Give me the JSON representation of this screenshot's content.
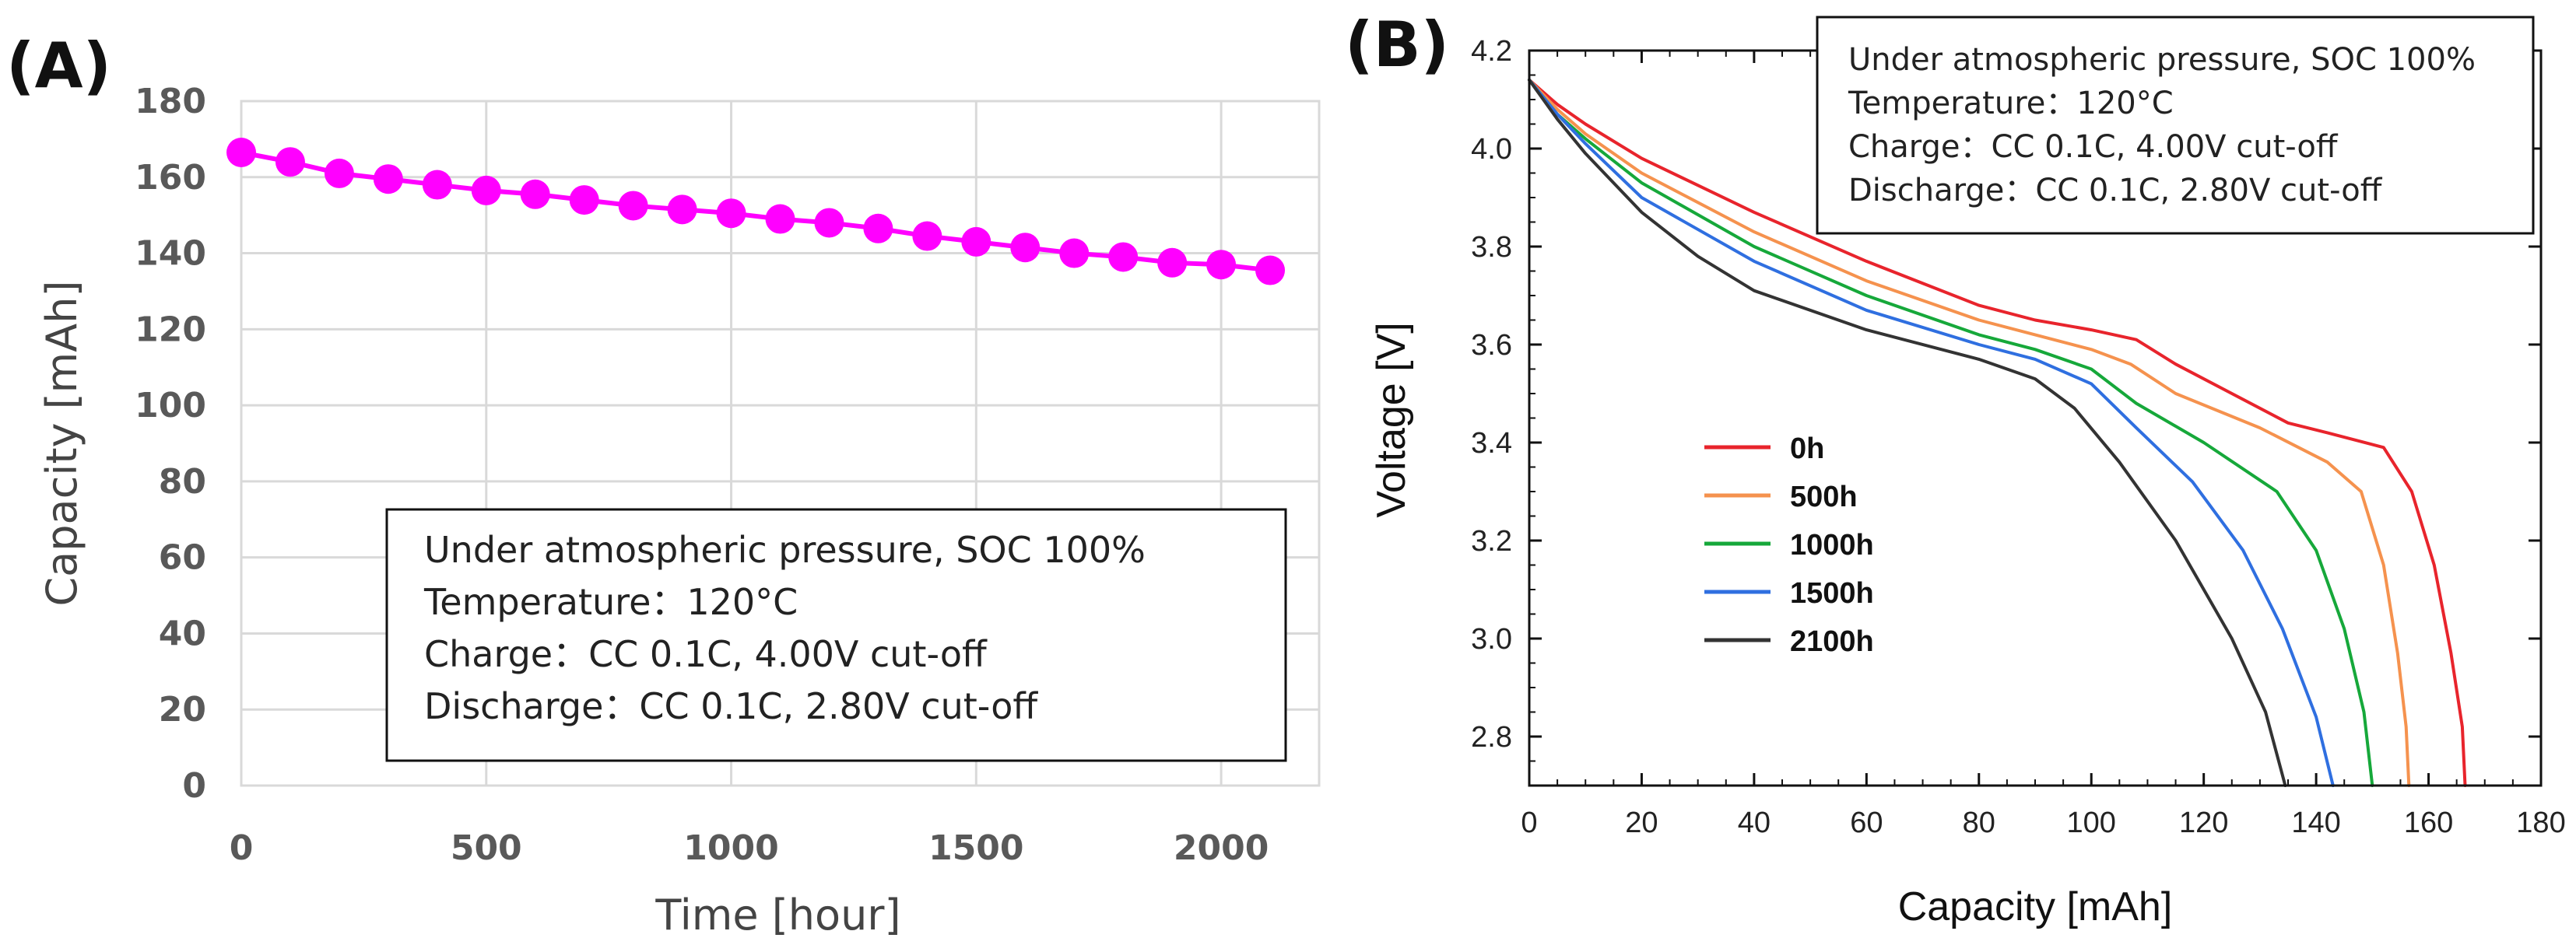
{
  "chart_data": [
    {
      "panel_label": "(A)",
      "type": "scatter",
      "title": "",
      "xlabel": "Time [hour]",
      "ylabel": "Capacity [mAh]",
      "xlim": [
        0,
        2200
      ],
      "ylim": [
        0,
        180
      ],
      "x_ticks": [
        0,
        500,
        1000,
        1500,
        2000
      ],
      "y_ticks": [
        0,
        20,
        40,
        60,
        80,
        100,
        120,
        140,
        160,
        180
      ],
      "grid": true,
      "marker_color": "#FF00FF",
      "series": [
        {
          "name": "Capacity",
          "x": [
            0,
            100,
            200,
            300,
            400,
            500,
            600,
            700,
            800,
            900,
            1000,
            1100,
            1200,
            1300,
            1400,
            1500,
            1600,
            1700,
            1800,
            1900,
            2000,
            2100
          ],
          "y": [
            166.5,
            164,
            161,
            159.5,
            158,
            156.5,
            155.5,
            154,
            152.5,
            151.5,
            150.5,
            149,
            148,
            146.5,
            144.5,
            143,
            141.5,
            140,
            139,
            137.5,
            137,
            135.5
          ]
        }
      ],
      "annotation": [
        "Under atmospheric pressure, SOC 100%",
        "Temperature：120°C",
        "Charge：CC 0.1C, 4.00V cut-off",
        "Discharge：CC 0.1C, 2.80V cut-off"
      ]
    },
    {
      "panel_label": "(B)",
      "type": "line",
      "title": "",
      "xlabel": "Capacity [mAh]",
      "ylabel": "Voltage [V]",
      "xlim": [
        0,
        180
      ],
      "ylim": [
        2.7,
        4.2
      ],
      "x_ticks": [
        0,
        20,
        40,
        60,
        80,
        100,
        120,
        140,
        160,
        180
      ],
      "y_ticks": [
        2.8,
        3.0,
        3.2,
        3.4,
        3.6,
        3.8,
        4.0,
        4.2
      ],
      "grid": false,
      "legend_position": "center-left",
      "series": [
        {
          "name": "0h",
          "color": "#E8242C",
          "points": [
            [
              0,
              4.14
            ],
            [
              5,
              4.09
            ],
            [
              10,
              4.05
            ],
            [
              20,
              3.98
            ],
            [
              40,
              3.87
            ],
            [
              60,
              3.77
            ],
            [
              80,
              3.68
            ],
            [
              90,
              3.65
            ],
            [
              100,
              3.63
            ],
            [
              108,
              3.61
            ],
            [
              115,
              3.56
            ],
            [
              125,
              3.5
            ],
            [
              135,
              3.44
            ],
            [
              142,
              3.42
            ],
            [
              152,
              3.39
            ],
            [
              157,
              3.3
            ],
            [
              161,
              3.15
            ],
            [
              164,
              2.97
            ],
            [
              166,
              2.82
            ],
            [
              166.5,
              2.7
            ]
          ]
        },
        {
          "name": "500h",
          "color": "#F5924E",
          "points": [
            [
              0,
              4.14
            ],
            [
              5,
              4.08
            ],
            [
              10,
              4.03
            ],
            [
              20,
              3.95
            ],
            [
              40,
              3.83
            ],
            [
              60,
              3.73
            ],
            [
              80,
              3.65
            ],
            [
              90,
              3.62
            ],
            [
              100,
              3.59
            ],
            [
              107,
              3.56
            ],
            [
              115,
              3.5
            ],
            [
              130,
              3.43
            ],
            [
              142,
              3.36
            ],
            [
              148,
              3.3
            ],
            [
              152,
              3.15
            ],
            [
              154.5,
              2.97
            ],
            [
              156,
              2.82
            ],
            [
              156.5,
              2.7
            ]
          ]
        },
        {
          "name": "1000h",
          "color": "#16A83A",
          "points": [
            [
              0,
              4.14
            ],
            [
              5,
              4.07
            ],
            [
              10,
              4.02
            ],
            [
              20,
              3.93
            ],
            [
              40,
              3.8
            ],
            [
              60,
              3.7
            ],
            [
              80,
              3.62
            ],
            [
              90,
              3.59
            ],
            [
              100,
              3.55
            ],
            [
              108,
              3.48
            ],
            [
              120,
              3.4
            ],
            [
              133,
              3.3
            ],
            [
              140,
              3.18
            ],
            [
              145,
              3.02
            ],
            [
              148.5,
              2.85
            ],
            [
              150,
              2.7
            ]
          ]
        },
        {
          "name": "1500h",
          "color": "#2F6FE0",
          "points": [
            [
              0,
              4.14
            ],
            [
              5,
              4.07
            ],
            [
              10,
              4.01
            ],
            [
              20,
              3.9
            ],
            [
              40,
              3.77
            ],
            [
              60,
              3.67
            ],
            [
              80,
              3.6
            ],
            [
              90,
              3.57
            ],
            [
              100,
              3.52
            ],
            [
              108,
              3.43
            ],
            [
              118,
              3.32
            ],
            [
              127,
              3.18
            ],
            [
              134,
              3.02
            ],
            [
              140,
              2.84
            ],
            [
              143,
              2.7
            ]
          ]
        },
        {
          "name": "2100h",
          "color": "#333333",
          "points": [
            [
              0,
              4.14
            ],
            [
              5,
              4.06
            ],
            [
              10,
              3.99
            ],
            [
              20,
              3.87
            ],
            [
              30,
              3.78
            ],
            [
              40,
              3.71
            ],
            [
              60,
              3.63
            ],
            [
              80,
              3.57
            ],
            [
              90,
              3.53
            ],
            [
              97,
              3.47
            ],
            [
              105,
              3.36
            ],
            [
              115,
              3.2
            ],
            [
              125,
              3.0
            ],
            [
              131,
              2.85
            ],
            [
              134.5,
              2.7
            ]
          ]
        }
      ],
      "annotation": [
        "Under atmospheric pressure, SOC 100%",
        "Temperature：120°C",
        "Charge：CC 0.1C, 4.00V cut-off",
        "Discharge：CC 0.1C, 2.80V cut-off"
      ]
    }
  ]
}
